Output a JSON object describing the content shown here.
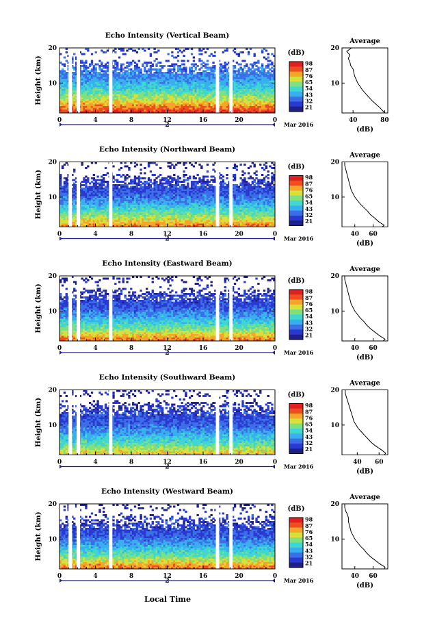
{
  "figure": {
    "x_axis_title": "Local Time",
    "background": "#ffffff",
    "colorscale": [
      "#1f1f8a",
      "#2a3ad0",
      "#3b6fe8",
      "#38b0f0",
      "#3fd7d0",
      "#7fe07f",
      "#d9e03a",
      "#f4a52a",
      "#ee4d1f",
      "#e02020"
    ]
  },
  "chart_data": [
    {
      "type": "heatmap",
      "title": "Echo Intensity (Vertical Beam)",
      "ylabel": "Height (km)",
      "xlim": [
        0,
        24
      ],
      "ylim": [
        1.5,
        20
      ],
      "x_ticks": [
        "0",
        "4",
        "8",
        "12",
        "16",
        "20",
        "0"
      ],
      "y_ticks": [
        "10",
        "20"
      ],
      "date_marker": "2",
      "date_label": "Mar 2016",
      "colorbar": {
        "unit": "(dB)",
        "ticks": [
          "98",
          "87",
          "76",
          "65",
          "54",
          "43",
          "32",
          "21"
        ]
      },
      "data_gaps_hours": [
        1.2,
        2.1,
        5.7,
        17.6,
        19.1
      ],
      "profile": {
        "title": "Average",
        "xlabel": "(dB)",
        "x_ticks": [
          "40",
          "80"
        ],
        "xlim": [
          26,
          84
        ],
        "y_ticks": [
          "10",
          "20"
        ],
        "height_km": [
          1.5,
          2,
          3,
          4,
          5,
          6,
          7,
          8,
          9,
          10,
          11,
          12,
          13,
          14,
          15,
          16,
          17,
          18,
          19,
          20
        ],
        "mean_db": [
          80,
          78,
          74,
          69,
          64,
          60,
          56,
          52,
          49,
          46,
          44,
          42,
          41,
          40,
          37,
          36,
          34,
          36,
          32,
          38
        ]
      }
    },
    {
      "type": "heatmap",
      "title": "Echo Intensity (Northward Beam)",
      "ylabel": "Height (km)",
      "xlim": [
        0,
        24
      ],
      "ylim": [
        1.5,
        20
      ],
      "x_ticks": [
        "0",
        "4",
        "8",
        "12",
        "16",
        "20",
        "0"
      ],
      "y_ticks": [
        "10",
        "20"
      ],
      "date_marker": "2",
      "date_label": "Mar 2016",
      "colorbar": {
        "unit": "(dB)",
        "ticks": [
          "98",
          "87",
          "76",
          "65",
          "54",
          "43",
          "32",
          "21"
        ]
      },
      "data_gaps_hours": [
        1.2,
        2.1,
        5.7,
        17.6,
        19.1
      ],
      "profile": {
        "title": "Average",
        "xlabel": "(dB)",
        "x_ticks": [
          "40",
          "60"
        ],
        "xlim": [
          26,
          76
        ],
        "y_ticks": [
          "10",
          "20"
        ],
        "height_km": [
          1.5,
          2,
          3,
          4,
          5,
          6,
          7,
          8,
          9,
          10,
          11,
          12,
          13,
          14,
          15,
          16,
          17,
          18,
          19,
          20
        ],
        "mean_db": [
          70,
          72,
          66,
          62,
          57,
          54,
          50,
          46,
          43,
          40,
          38,
          36,
          35,
          34,
          33,
          32,
          31,
          30,
          29,
          29
        ]
      }
    },
    {
      "type": "heatmap",
      "title": "Echo Intensity (Eastward Beam)",
      "ylabel": "Height (km)",
      "xlim": [
        0,
        24
      ],
      "ylim": [
        1.5,
        20
      ],
      "x_ticks": [
        "0",
        "4",
        "8",
        "12",
        "16",
        "20",
        "0"
      ],
      "y_ticks": [
        "10",
        "20"
      ],
      "date_marker": "2",
      "date_label": "Mar 2016",
      "colorbar": {
        "unit": "(dB)",
        "ticks": [
          "98",
          "87",
          "76",
          "65",
          "54",
          "43",
          "32",
          "21"
        ]
      },
      "data_gaps_hours": [
        1.2,
        2.1,
        5.7,
        17.6,
        19.1
      ],
      "profile": {
        "title": "Average",
        "xlabel": "(dB)",
        "x_ticks": [
          "40",
          "60"
        ],
        "xlim": [
          26,
          76
        ],
        "y_ticks": [
          "10",
          "20"
        ],
        "height_km": [
          1.5,
          2,
          3,
          4,
          5,
          6,
          7,
          8,
          9,
          10,
          11,
          12,
          13,
          14,
          15,
          16,
          17,
          18,
          19,
          20
        ],
        "mean_db": [
          71,
          73,
          67,
          62,
          57,
          53,
          50,
          46,
          43,
          40,
          38,
          36,
          35,
          34,
          33,
          32,
          31,
          30,
          29,
          29
        ]
      }
    },
    {
      "type": "heatmap",
      "title": "Echo Intensity (Southward Beam)",
      "ylabel": "Height (km)",
      "xlim": [
        0,
        24
      ],
      "ylim": [
        1.5,
        20
      ],
      "x_ticks": [
        "0",
        "4",
        "8",
        "12",
        "16",
        "20",
        "0"
      ],
      "y_ticks": [
        "10",
        "20"
      ],
      "date_marker": "2",
      "date_label": "Mar 2016",
      "colorbar": {
        "unit": "(dB)",
        "ticks": [
          "98",
          "87",
          "76",
          "65",
          "54",
          "43",
          "32",
          "21"
        ]
      },
      "data_gaps_hours": [
        1.2,
        2.1,
        5.7,
        17.6,
        19.1
      ],
      "profile": {
        "title": "Average",
        "xlabel": "(dB)",
        "x_ticks": [
          "40",
          "60"
        ],
        "xlim": [
          26,
          68
        ],
        "y_ticks": [
          "10",
          "20"
        ],
        "height_km": [
          1.5,
          2,
          3,
          4,
          5,
          6,
          7,
          8,
          9,
          10,
          11,
          12,
          13,
          14,
          15,
          16,
          17,
          18,
          19,
          20
        ],
        "mean_db": [
          65,
          66,
          62,
          57,
          53,
          50,
          47,
          44,
          41,
          39,
          37,
          36,
          35,
          34,
          33,
          32,
          31,
          30,
          29,
          29
        ]
      }
    },
    {
      "type": "heatmap",
      "title": "Echo Intensity (Westward Beam)",
      "ylabel": "Height (km)",
      "xlim": [
        0,
        24
      ],
      "ylim": [
        1.5,
        20
      ],
      "x_ticks": [
        "0",
        "4",
        "8",
        "12",
        "16",
        "20",
        "0"
      ],
      "y_ticks": [
        "10",
        "20"
      ],
      "date_marker": "2",
      "date_label": "Mar 2016",
      "colorbar": {
        "unit": "(dB)",
        "ticks": [
          "98",
          "87",
          "76",
          "65",
          "54",
          "43",
          "32",
          "21"
        ]
      },
      "data_gaps_hours": [
        1.2,
        2.1,
        5.7,
        17.6,
        19.1
      ],
      "profile": {
        "title": "Average",
        "xlabel": "(dB)",
        "x_ticks": [
          "40",
          "60"
        ],
        "xlim": [
          26,
          76
        ],
        "y_ticks": [
          "10",
          "20"
        ],
        "height_km": [
          1.5,
          2,
          3,
          4,
          5,
          6,
          7,
          8,
          9,
          10,
          11,
          12,
          13,
          14,
          15,
          16,
          17,
          18,
          19,
          20
        ],
        "mean_db": [
          72,
          73,
          67,
          62,
          57,
          53,
          50,
          46,
          43,
          40,
          38,
          36,
          35,
          34,
          33,
          33,
          32,
          30,
          29,
          29
        ]
      }
    }
  ]
}
